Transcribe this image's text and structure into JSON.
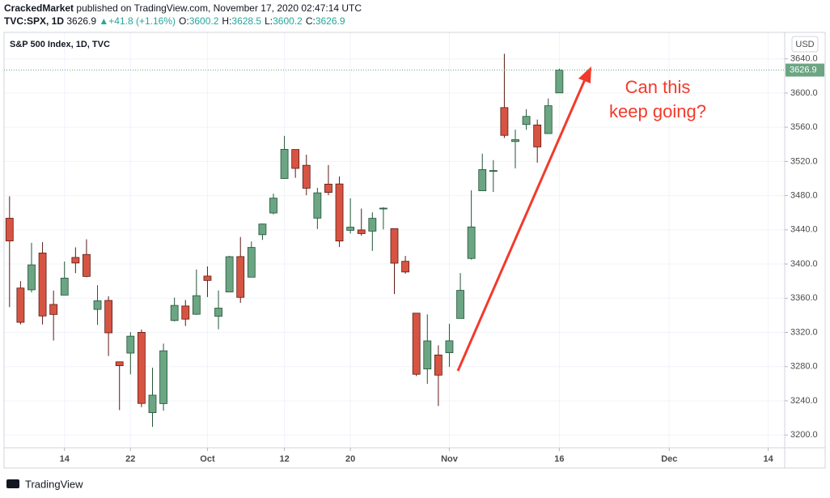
{
  "header": {
    "author": "CrackedMarket",
    "byline": "published on TradingView.com, November 17, 2020 02:47:14 UTC",
    "symbol": "TVC:SPX, 1D",
    "last": "3626.9",
    "change_arrow": "▲",
    "change": "+41.8 (+1.16%)",
    "ohlc_keys": [
      "O:",
      "H:",
      "L:",
      "C:"
    ],
    "ohlc_values": [
      3600.2,
      3628.5,
      3600.2,
      3626.9
    ]
  },
  "chart_data": {
    "type": "candlestick",
    "title": "S&P 500 Index, 1D, TVC",
    "currency": "USD",
    "annotation": [
      "Can this",
      "keep going?"
    ],
    "annotation_color": "#f23a2c",
    "x": [
      0,
      1,
      2,
      3,
      4,
      5,
      6,
      7,
      8,
      9,
      10,
      11,
      12,
      13,
      14,
      15,
      16,
      17,
      18,
      19,
      20,
      21,
      22,
      23,
      24,
      25,
      26,
      27,
      28,
      29,
      30,
      31,
      32,
      33,
      34,
      35,
      36,
      37,
      38,
      39,
      40,
      41,
      42,
      43,
      44,
      45,
      46,
      47,
      48,
      49,
      50
    ],
    "open": [
      3453.6,
      3371.9,
      3369.8,
      3412.9,
      3352.7,
      3363.6,
      3407.7,
      3411.2,
      3346.9,
      3357.4,
      3285.6,
      3295.8,
      3320.1,
      3226.1,
      3236.7,
      3333.9,
      3350.9,
      3341.2,
      3385.9,
      3338.9,
      3367.3,
      3408.7,
      3384.6,
      3434.3,
      3459.7,
      3500.0,
      3534.0,
      3515.5,
      3453.7,
      3493.5,
      3493.7,
      3439.4,
      3439.9,
      3438.5,
      3464.9,
      3441.4,
      3403.2,
      3342.5,
      3277.2,
      3293.6,
      3296.2,
      3336.3,
      3406.5,
      3485.7,
      3508.3,
      3583.0,
      3543.3,
      3563.2,
      3562.7,
      3552.6,
      3600.2
    ],
    "high": [
      3479.2,
      3380.0,
      3424.8,
      3425.6,
      3369.0,
      3402.9,
      3419.5,
      3428.9,
      3375.2,
      3362.3,
      3285.6,
      3320.3,
      3323.4,
      3278.7,
      3306.9,
      3360.7,
      3357.9,
      3393.6,
      3397.2,
      3369.1,
      3409.6,
      3431.6,
      3426.3,
      3447.3,
      3482.3,
      3549.9,
      3534.0,
      3527.9,
      3489.1,
      3515.8,
      3502.4,
      3476.9,
      3464.9,
      3460.5,
      3466.5,
      3441.4,
      3409.5,
      3342.5,
      3341.1,
      3304.9,
      3330.1,
      3389.5,
      3486.3,
      3529.1,
      3521.6,
      3646.0,
      3557.2,
      3581.2,
      3569.0,
      3593.7,
      3628.5
    ],
    "low": [
      3349.6,
      3329.3,
      3366.8,
      3329.3,
      3310.5,
      3363.6,
      3389.3,
      3384.5,
      3328.8,
      3292.4,
      3229.1,
      3271.0,
      3232.6,
      3209.5,
      3228.4,
      3332.9,
      3327.5,
      3340.5,
      3361.4,
      3323.7,
      3367.3,
      3354.5,
      3384.6,
      3428.2,
      3458.1,
      3499.6,
      3500.9,
      3480.6,
      3440.9,
      3480.5,
      3419.9,
      3435.7,
      3433.1,
      3415.3,
      3440.5,
      3364.9,
      3388.7,
      3268.9,
      3259.8,
      3233.9,
      3279.7,
      3336.3,
      3405.2,
      3485.7,
      3484.3,
      3547.5,
      3511.9,
      3557.0,
      3518.6,
      3552.6,
      3600.2
    ],
    "close": [
      3427.0,
      3331.8,
      3399.0,
      3339.2,
      3341.0,
      3383.5,
      3401.2,
      3385.5,
      3357.0,
      3319.5,
      3281.1,
      3315.6,
      3236.9,
      3246.6,
      3298.5,
      3351.6,
      3335.5,
      3363.0,
      3380.8,
      3348.4,
      3408.6,
      3361.0,
      3419.4,
      3446.8,
      3477.1,
      3534.2,
      3511.9,
      3488.7,
      3483.3,
      3483.8,
      3426.9,
      3443.1,
      3435.6,
      3453.5,
      3465.4,
      3401.0,
      3390.7,
      3271.0,
      3310.1,
      3270.0,
      3310.2,
      3369.2,
      3443.4,
      3510.5,
      3509.4,
      3550.5,
      3545.5,
      3572.7,
      3537.0,
      3585.2,
      3626.9
    ],
    "up_color": "#6ba583",
    "down_color": "#d75442",
    "up_border": "#225437",
    "down_border": "#5b1a13",
    "last_price": {
      "value": 3626.9,
      "label": "3626.9"
    },
    "xlim": [
      -0.5,
      70.5
    ],
    "xticks": [
      {
        "value": 5,
        "label": "14"
      },
      {
        "value": 11,
        "label": "22"
      },
      {
        "value": 18,
        "label": "Oct"
      },
      {
        "value": 25,
        "label": "12"
      },
      {
        "value": 31,
        "label": "20"
      },
      {
        "value": 40,
        "label": "Nov"
      },
      {
        "value": 50,
        "label": "16"
      },
      {
        "value": 60,
        "label": "Dec"
      },
      {
        "value": 69,
        "label": "14"
      }
    ],
    "ylim": [
      3185,
      3671
    ],
    "yticks": [
      {
        "value": 3200,
        "label": "3200.0"
      },
      {
        "value": 3240,
        "label": "3240.0"
      },
      {
        "value": 3280,
        "label": "3280.0"
      },
      {
        "value": 3320,
        "label": "3320.0"
      },
      {
        "value": 3360,
        "label": "3360.0"
      },
      {
        "value": 3400,
        "label": "3400.0"
      },
      {
        "value": 3440,
        "label": "3440.0"
      },
      {
        "value": 3480,
        "label": "3480.0"
      },
      {
        "value": 3520,
        "label": "3520.0"
      },
      {
        "value": 3560,
        "label": "3560.0"
      },
      {
        "value": 3600,
        "label": "3600.0"
      },
      {
        "value": 3640,
        "label": "3640.0"
      }
    ],
    "grid": true
  },
  "footer": "TradingView"
}
